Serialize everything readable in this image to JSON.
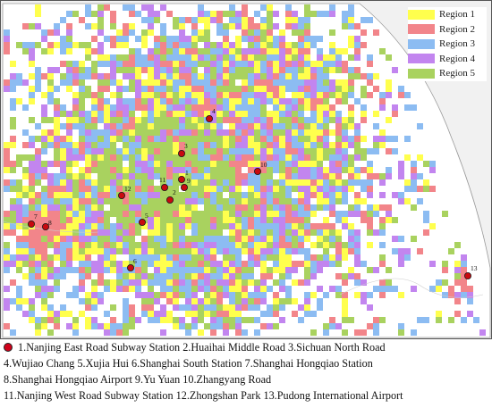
{
  "legend": {
    "items": [
      {
        "label": "Region 1",
        "color": "#ffff4d"
      },
      {
        "label": "Region 2",
        "color": "#f2858a"
      },
      {
        "label": "Region 3",
        "color": "#8cbcf2"
      },
      {
        "label": "Region 4",
        "color": "#c285ef"
      },
      {
        "label": "Region 5",
        "color": "#a9d25f"
      }
    ]
  },
  "marker_color": "#c80a10",
  "stations": [
    {
      "id": "1",
      "name": "Nanjing East Road Subway Station"
    },
    {
      "id": "2",
      "name": "Huaihai Middle Road"
    },
    {
      "id": "3",
      "name": "Sichuan North Road"
    },
    {
      "id": "4",
      "name": "Wujiao Chang"
    },
    {
      "id": "5",
      "name": "Xujia Hui"
    },
    {
      "id": "6",
      "name": "Shanghai South Station"
    },
    {
      "id": "7",
      "name": "Shanghai Hongqiao Station"
    },
    {
      "id": "8",
      "name": "Shanghai Hongqiao Airport"
    },
    {
      "id": "9",
      "name": "Yu Yuan"
    },
    {
      "id": "10",
      "name": "Zhangyang Road"
    },
    {
      "id": "11",
      "name": "Nanjing West Road Subway Station"
    },
    {
      "id": "12",
      "name": "Zhongshan Park"
    },
    {
      "id": "13",
      "name": "Pudong International Airport"
    }
  ],
  "caption": {
    "line1": "1.Nanjing East Road Subway Station 2.Huaihai Middle Road 3.Sichuan North Road",
    "line2": "4.Wujiao Chang 5.Xujia Hui 6.Shanghai South Station 7.Shanghai Hongqiao Station",
    "line3": "8.Shanghai Hongqiao Airport 9.Yu Yuan 10.Zhangyang Road",
    "line4": "11.Nanjing West Road Subway Station 12.Zhongshan Park 13.Pudong International Airport"
  }
}
